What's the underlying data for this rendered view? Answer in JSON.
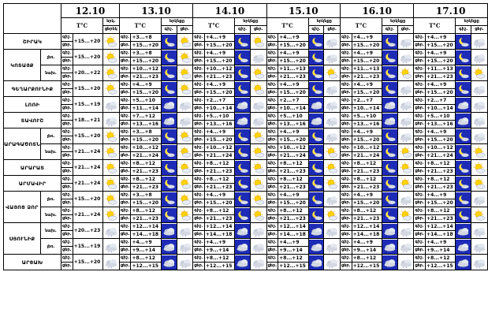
{
  "dates": [
    "12.10",
    "13.10",
    "14.10",
    "15.10",
    "16.10",
    "17.10"
  ],
  "temp_header": "T°C",
  "cloud_header": "երկնքը",
  "cloud_header_short": "երկ.",
  "day_label": "ցերեկը",
  "night_label": "գիշեր",
  "day": "ցերեկ",
  "night": "գիշեր",
  "day_short": "ցեր.",
  "night_short": "գիշ.",
  "rows": [
    {
      "region": "ՇԻՐԱԿ",
      "sub": "",
      "t12": "+15...+20",
      "temps": [
        [
          "+3...+8",
          "+15...+20"
        ],
        [
          "+4...+9",
          "+15...+20"
        ],
        [
          "+4...+9",
          "+15...+20"
        ],
        [
          "+4...+9",
          "+15...+20"
        ],
        [
          "+4...+9",
          "+15...+20"
        ]
      ],
      "icons": [
        "sun",
        [
          "moon",
          "sun"
        ],
        [
          "moon",
          "sun"
        ],
        [
          "moon",
          "cloud"
        ],
        [
          "moon",
          "cloud"
        ],
        [
          "moon",
          "cloud"
        ]
      ]
    },
    {
      "region": "ԿՈՏԱՅՔ",
      "sub": "լեռ.",
      "t12": "+15...+20",
      "temps": [
        [
          "+3...+8",
          "+15...+20"
        ],
        [
          "+4...+9",
          "+15...+20"
        ],
        [
          "+4...+9",
          "+15...+20"
        ],
        [
          "+4...+9",
          "+15...+20"
        ],
        [
          "+4...+9",
          "+15...+20"
        ]
      ],
      "icons": [
        "sun",
        [
          "moon",
          "sun"
        ],
        [
          "moon",
          "cloud"
        ],
        [
          "moon",
          "cloud"
        ],
        [
          "moon",
          "cloud"
        ],
        [
          "moon",
          "cloud"
        ]
      ]
    },
    {
      "region": "",
      "sub": "նախ.",
      "t12": "+20...+22",
      "temps": [
        [
          "+10...+12",
          "+21...+23"
        ],
        [
          "+10...+12",
          "+21...+23"
        ],
        [
          "+11...+13",
          "+21...+23"
        ],
        [
          "+11...+13",
          "+21...+23"
        ],
        [
          "+11...+13",
          "+21...+23"
        ]
      ],
      "icons": [
        "sun",
        [
          "moon",
          "sun"
        ],
        [
          "moon",
          "sun"
        ],
        [
          "moon",
          "sun"
        ],
        [
          "moon",
          "sun"
        ],
        [
          "moon",
          "sun"
        ]
      ]
    },
    {
      "region": "ԳԵՂԱՐՔՈՒՆԻՔ",
      "sub": "",
      "t12": "+15...+20",
      "temps": [
        [
          "+4...+9",
          "+15...+20"
        ],
        [
          "+4...+9",
          "+15...+20"
        ],
        [
          "+4...+9",
          "+15...+20"
        ],
        [
          "+4...+9",
          "+15...+20"
        ],
        [
          "+4...+9",
          "+15...+20"
        ]
      ],
      "icons": [
        "sun",
        [
          "moon",
          "sun"
        ],
        [
          "moon",
          "sun"
        ],
        [
          "moon",
          "cloud"
        ],
        [
          "moon",
          "cloud"
        ],
        [
          "moon",
          "cloud"
        ]
      ]
    },
    {
      "region": "ԼՈՌԻ",
      "sub": "",
      "t12": "+15...+19",
      "temps": [
        [
          "+5...+10",
          "+11...+14"
        ],
        [
          "+2...+7",
          "+10...+14"
        ],
        [
          "+2...+7",
          "+10...+14"
        ],
        [
          "+2...+7",
          "+10...+14"
        ],
        [
          "+2...+7",
          "+10...+14"
        ]
      ],
      "icons": [
        "cloud",
        [
          "cloud",
          "cloud"
        ],
        [
          "cloud",
          "cloud"
        ],
        [
          "cloud",
          "cloud"
        ],
        [
          "cloud",
          "cloud"
        ],
        [
          "cloud",
          "cloud"
        ]
      ]
    },
    {
      "region": "ՏԱՎՈՒՇ",
      "sub": "",
      "t12": "+18...+21",
      "temps": [
        [
          "+7...+12",
          "+13...+16"
        ],
        [
          "+5...+10",
          "+13...+16"
        ],
        [
          "+5...+10",
          "+13...+16"
        ],
        [
          "+5...+10",
          "+13...+16"
        ],
        [
          "+5...+10",
          "+13...+16"
        ]
      ],
      "icons": [
        "cloud",
        [
          "cloud",
          "cloud"
        ],
        [
          "cloud",
          "cloud"
        ],
        [
          "cloud",
          "cloud"
        ],
        [
          "cloud",
          "cloud"
        ],
        [
          "cloud",
          "cloud"
        ]
      ]
    },
    {
      "region": "ԱՐԱԳԱԾՈՏՆ",
      "sub": "լեռ.",
      "t12": "+15...+20",
      "temps": [
        [
          "+3...+8",
          "+15...+20"
        ],
        [
          "+4...+9",
          "+15...+20"
        ],
        [
          "+4...+9",
          "+15...+20"
        ],
        [
          "+4...+9",
          "+15...+20"
        ],
        [
          "+4...+9",
          "+15...+20"
        ]
      ],
      "icons": [
        "sun",
        [
          "moon",
          "sun"
        ],
        [
          "moon",
          "sun"
        ],
        [
          "moon",
          "cloud"
        ],
        [
          "moon",
          "cloud"
        ],
        [
          "moon",
          "cloud"
        ]
      ]
    },
    {
      "region": "",
      "sub": "նախ.",
      "t12": "+21...+24",
      "temps": [
        [
          "+10...+12",
          "+21...+24"
        ],
        [
          "+10...+12",
          "+21...+24"
        ],
        [
          "+10...+12",
          "+21...+24"
        ],
        [
          "+10...+12",
          "+21...+24"
        ],
        [
          "+10...+12",
          "+21...+24"
        ]
      ],
      "icons": [
        "sun",
        [
          "moon",
          "sun"
        ],
        [
          "moon",
          "sun"
        ],
        [
          "moon",
          "sun"
        ],
        [
          "moon",
          "sun"
        ],
        [
          "moon",
          "sun"
        ]
      ]
    },
    {
      "region": "ԱՐԱՐԱՏ",
      "sub": "",
      "t12": "+21...+24",
      "temps": [
        [
          "+8...+12",
          "+21...+23"
        ],
        [
          "+8...+12",
          "+21...+23"
        ],
        [
          "+8...+12",
          "+21...+23"
        ],
        [
          "+8...+12",
          "+21...+23"
        ],
        [
          "+8...+12",
          "+21...+23"
        ]
      ],
      "icons": [
        "sun",
        [
          "moon",
          "sun"
        ],
        [
          "moon",
          "sun"
        ],
        [
          "moon",
          "sun"
        ],
        [
          "moon",
          "sun"
        ],
        [
          "moon",
          "sun"
        ]
      ]
    },
    {
      "region": "ԱՐՄԱՎԻՐ",
      "sub": "",
      "t12": "+21...+24",
      "temps": [
        [
          "+8...+12",
          "+21...+23"
        ],
        [
          "+8...+12",
          "+21...+23"
        ],
        [
          "+8...+12",
          "+21...+23"
        ],
        [
          "+8...+12",
          "+21...+23"
        ],
        [
          "+8...+12",
          "+21...+23"
        ]
      ],
      "icons": [
        "sun",
        [
          "moon",
          "sun"
        ],
        [
          "moon",
          "sun"
        ],
        [
          "moon",
          "sun"
        ],
        [
          "moon",
          "sun"
        ],
        [
          "moon",
          "sun"
        ]
      ]
    },
    {
      "region": "ՎԱՅՈՑ ՁՈՐ",
      "sub": "լեռ.",
      "t12": "+15...+20",
      "temps": [
        [
          "+3...+8",
          "+15...+20"
        ],
        [
          "+4...+9",
          "+15...+20"
        ],
        [
          "+4...+9",
          "+15...+20"
        ],
        [
          "+4...+9",
          "+15...+20"
        ],
        [
          "+4...+9",
          "+15...+20"
        ]
      ],
      "icons": [
        "sun",
        [
          "moon",
          "sun"
        ],
        [
          "moon",
          "sun"
        ],
        [
          "moon",
          "cloud"
        ],
        [
          "moon",
          "cloud"
        ],
        [
          "moon",
          "cloud"
        ]
      ]
    },
    {
      "region": "",
      "sub": "նախ.",
      "t12": "+21...+24",
      "temps": [
        [
          "+8...+12",
          "+21...+23"
        ],
        [
          "+8...+12",
          "+21...+23"
        ],
        [
          "+8...+12",
          "+21...+23"
        ],
        [
          "+8...+12",
          "+21...+23"
        ],
        [
          "+8...+12",
          "+21...+23"
        ]
      ],
      "icons": [
        "sun",
        [
          "moon",
          "sun"
        ],
        [
          "moon",
          "sun"
        ],
        [
          "moon",
          "sun"
        ],
        [
          "moon",
          "sun"
        ],
        [
          "moon",
          "sun"
        ]
      ]
    },
    {
      "region": "ՍՅՈՒՆԻՔ",
      "sub": "նախ.",
      "t12": "+20...+23",
      "temps": [
        [
          "+12...+14",
          "+14...+18"
        ],
        [
          "+12...+14",
          "+14...+18"
        ],
        [
          "+12...+14",
          "+14...+18"
        ],
        [
          "+12...+14",
          "+14...+18"
        ],
        [
          "+12...+14",
          "+14...+18"
        ]
      ],
      "icons": [
        "cloud",
        [
          "cloud",
          "cloud"
        ],
        [
          "cloud",
          "cloud"
        ],
        [
          "cloud",
          "cloud"
        ],
        [
          "cloud",
          "cloud"
        ],
        [
          "cloud",
          "cloud"
        ]
      ]
    },
    {
      "region": "",
      "sub": "լեռ.",
      "t12": "+15...+19",
      "temps": [
        [
          "+4...+9",
          "+9...+14"
        ],
        [
          "+4...+9",
          "+9...+14"
        ],
        [
          "+4...+9",
          "+9...+14"
        ],
        [
          "+4...+9",
          "+9...+14"
        ],
        [
          "+4...+9",
          "+9...+14"
        ]
      ],
      "icons": [
        "cloud",
        [
          "cloud",
          "cloud"
        ],
        [
          "cloud",
          "cloud"
        ],
        [
          "cloud",
          "cloud"
        ],
        [
          "cloud",
          "cloud"
        ],
        [
          "cloud",
          "cloud"
        ]
      ]
    },
    {
      "region": "ԱՐՑԱԽ",
      "sub": "",
      "t12": "+15...+20",
      "temps": [
        [
          "+8...+12",
          "+12...+15"
        ],
        [
          "+8...+12",
          "+12...+15"
        ],
        [
          "+8...+12",
          "+12...+15"
        ],
        [
          "+8...+12",
          "+12...+15"
        ],
        [
          "+8...+12",
          "+12...+15"
        ]
      ],
      "icons": [
        "cloud",
        [
          "cloud",
          "cloud"
        ],
        [
          "cloud",
          "cloud"
        ],
        [
          "cloud",
          "cloud"
        ],
        [
          "cloud",
          "cloud"
        ],
        [
          "cloud",
          "cloud"
        ]
      ]
    }
  ]
}
